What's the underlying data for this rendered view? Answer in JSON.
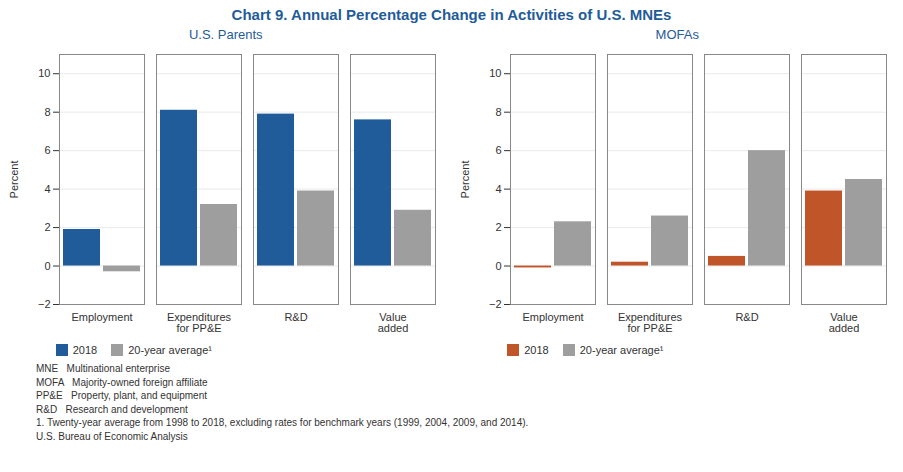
{
  "title": "Chart 9. Annual Percentage Change in Activities of U.S. MNEs",
  "annotations": [
    "MNE   Multinational enterprise",
    "MOFA   Majority-owned foreign affiliate",
    "PP&E   Property, plant, and equipment",
    "R&D   Research and development",
    "1. Twenty-year average from 1998 to 2018, excluding rates for benchmark years (1999, 2004, 2009, and 2014).",
    "U.S. Bureau of Economic Analysis"
  ],
  "chart_data": [
    {
      "type": "bar",
      "title": "U.S. Parents",
      "categories": [
        "Employment",
        "Expenditures\nfor PP&E",
        "R&D",
        "Value\nadded"
      ],
      "series": [
        {
          "name": "2018",
          "color": "#1F5C99",
          "values": [
            1.9,
            8.1,
            7.9,
            7.6
          ]
        },
        {
          "name": "20-year average¹",
          "color": "#9E9E9E",
          "values": [
            -0.3,
            3.2,
            3.9,
            2.9
          ]
        }
      ],
      "ylabel": "Percent",
      "ylim": [
        -2,
        11
      ],
      "yticks": [
        -2,
        0,
        2,
        4,
        6,
        8,
        10
      ],
      "grid": true,
      "legend": "bottom"
    },
    {
      "type": "bar",
      "title": "MOFAs",
      "categories": [
        "Employment",
        "Expenditures\nfor PP&E",
        "R&D",
        "Value\nadded"
      ],
      "series": [
        {
          "name": "2018",
          "color": "#C0552A",
          "values": [
            -0.1,
            0.2,
            0.5,
            3.9
          ]
        },
        {
          "name": "20-year average¹",
          "color": "#9E9E9E",
          "values": [
            2.3,
            2.6,
            6.0,
            4.5
          ]
        }
      ],
      "ylabel": "Percent",
      "ylim": [
        -2,
        11
      ],
      "yticks": [
        -2,
        0,
        2,
        4,
        6,
        8,
        10
      ],
      "grid": true,
      "legend": "bottom"
    }
  ]
}
